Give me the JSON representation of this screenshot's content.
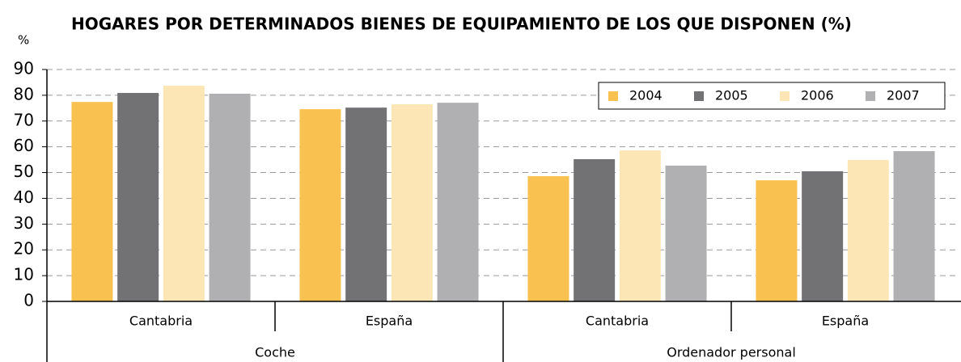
{
  "chart_data": {
    "type": "bar",
    "title": "HOGARES POR DETERMINADOS BIENES DE EQUIPAMIENTO DE LOS QUE DISPONEN (%)",
    "y_label": "%",
    "groups": [
      {
        "name": "Coche",
        "categories": [
          "Cantabria",
          "España"
        ]
      },
      {
        "name": "Ordenador personal",
        "categories": [
          "Cantabria",
          "España"
        ]
      }
    ],
    "series": [
      {
        "name": "2004",
        "color": "#f9c14f",
        "values": [
          77.4,
          74.6,
          48.6,
          47.0
        ]
      },
      {
        "name": "2005",
        "color": "#727174",
        "values": [
          80.9,
          75.2,
          55.2,
          50.5
        ]
      },
      {
        "name": "2006",
        "color": "#fde6b5",
        "values": [
          83.7,
          76.5,
          58.6,
          54.9
        ]
      },
      {
        "name": "2007",
        "color": "#b0b0b2",
        "values": [
          80.6,
          77.1,
          52.7,
          58.3
        ]
      }
    ],
    "ylim": [
      0,
      90
    ],
    "yticks": [
      0,
      10,
      20,
      30,
      40,
      50,
      60,
      70,
      80,
      90
    ],
    "grid": true,
    "legend": "top-right"
  }
}
